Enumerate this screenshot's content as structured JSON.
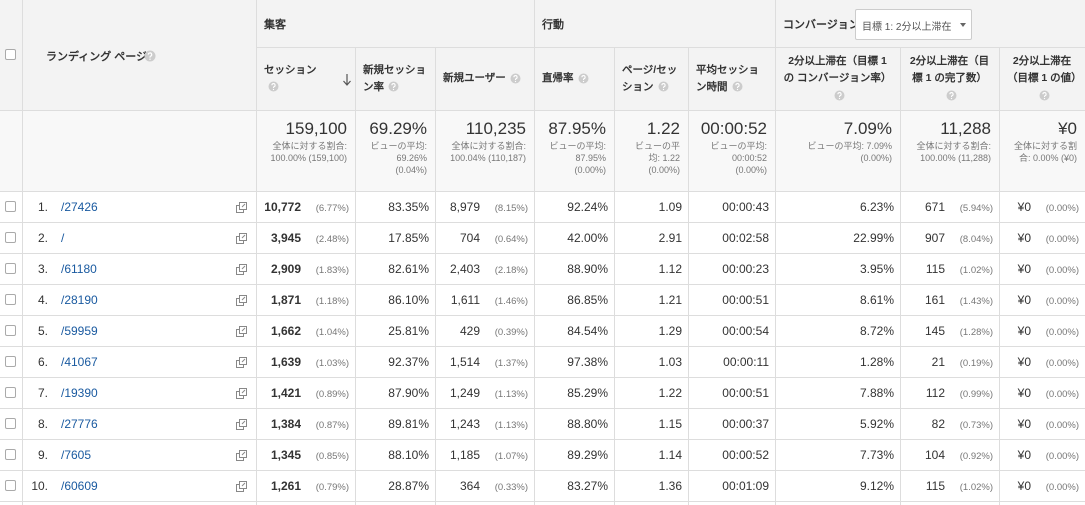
{
  "groups": [
    "集客",
    "行動",
    "コンバージョン"
  ],
  "goal_selector": "目標 1: 2分以上滞在",
  "columns": [
    "ランディング ページ",
    "セッション",
    "新規セッション率",
    "新規ユーザー",
    "直帰率",
    "ページ/セッション",
    "平均セッション時間",
    "2分以上滞在（目標 1 の コンバージョン率）",
    "2分以上滞在（目標 1 の完了数）",
    "2分以上滞在（目標 1 の値）"
  ],
  "totals": [
    {
      "value": "159,100",
      "note": [
        "全体に対する割合:",
        "100.00% (159,100)"
      ]
    },
    {
      "value": "69.29%",
      "note": [
        "ビューの平均:",
        "69.26%",
        "(0.04%)"
      ]
    },
    {
      "value": "110,235",
      "note": [
        "全体に対する割合:",
        "100.04% (110,187)"
      ]
    },
    {
      "value": "87.95%",
      "note": [
        "ビューの平均:",
        "87.95%",
        "(0.00%)"
      ]
    },
    {
      "value": "1.22",
      "note": [
        "ビューの平",
        "均: 1.22",
        "(0.00%)"
      ]
    },
    {
      "value": "00:00:52",
      "note": [
        "ビューの平均:",
        "00:00:52",
        "(0.00%)"
      ]
    },
    {
      "value": "7.09%",
      "note": [
        "ビューの平均: 7.09%",
        "(0.00%)"
      ]
    },
    {
      "value": "11,288",
      "note": [
        "全体に対する割合:",
        "100.00% (11,288)"
      ]
    },
    {
      "value": "¥0",
      "note": [
        "全体に対する割",
        "合: 0.00% (¥0)"
      ]
    }
  ],
  "rows": [
    {
      "rank": "1.",
      "page": "/27426",
      "cells": [
        [
          "10,772",
          "(6.77%)"
        ],
        [
          "83.35%"
        ],
        [
          "8,979",
          "(8.15%)"
        ],
        [
          "92.24%"
        ],
        [
          "1.09"
        ],
        [
          "00:00:43"
        ],
        [
          "6.23%"
        ],
        [
          "671",
          "(5.94%)"
        ],
        [
          "¥0",
          "(0.00%)"
        ]
      ]
    },
    {
      "rank": "2.",
      "page": "/",
      "cells": [
        [
          "3,945",
          "(2.48%)"
        ],
        [
          "17.85%"
        ],
        [
          "704",
          "(0.64%)"
        ],
        [
          "42.00%"
        ],
        [
          "2.91"
        ],
        [
          "00:02:58"
        ],
        [
          "22.99%"
        ],
        [
          "907",
          "(8.04%)"
        ],
        [
          "¥0",
          "(0.00%)"
        ]
      ]
    },
    {
      "rank": "3.",
      "page": "/61180",
      "cells": [
        [
          "2,909",
          "(1.83%)"
        ],
        [
          "82.61%"
        ],
        [
          "2,403",
          "(2.18%)"
        ],
        [
          "88.90%"
        ],
        [
          "1.12"
        ],
        [
          "00:00:23"
        ],
        [
          "3.95%"
        ],
        [
          "115",
          "(1.02%)"
        ],
        [
          "¥0",
          "(0.00%)"
        ]
      ]
    },
    {
      "rank": "4.",
      "page": "/28190",
      "cells": [
        [
          "1,871",
          "(1.18%)"
        ],
        [
          "86.10%"
        ],
        [
          "1,611",
          "(1.46%)"
        ],
        [
          "86.85%"
        ],
        [
          "1.21"
        ],
        [
          "00:00:51"
        ],
        [
          "8.61%"
        ],
        [
          "161",
          "(1.43%)"
        ],
        [
          "¥0",
          "(0.00%)"
        ]
      ]
    },
    {
      "rank": "5.",
      "page": "/59959",
      "cells": [
        [
          "1,662",
          "(1.04%)"
        ],
        [
          "25.81%"
        ],
        [
          "429",
          "(0.39%)"
        ],
        [
          "84.54%"
        ],
        [
          "1.29"
        ],
        [
          "00:00:54"
        ],
        [
          "8.72%"
        ],
        [
          "145",
          "(1.28%)"
        ],
        [
          "¥0",
          "(0.00%)"
        ]
      ]
    },
    {
      "rank": "6.",
      "page": "/41067",
      "cells": [
        [
          "1,639",
          "(1.03%)"
        ],
        [
          "92.37%"
        ],
        [
          "1,514",
          "(1.37%)"
        ],
        [
          "97.38%"
        ],
        [
          "1.03"
        ],
        [
          "00:00:11"
        ],
        [
          "1.28%"
        ],
        [
          "21",
          "(0.19%)"
        ],
        [
          "¥0",
          "(0.00%)"
        ]
      ]
    },
    {
      "rank": "7.",
      "page": "/19390",
      "cells": [
        [
          "1,421",
          "(0.89%)"
        ],
        [
          "87.90%"
        ],
        [
          "1,249",
          "(1.13%)"
        ],
        [
          "85.29%"
        ],
        [
          "1.22"
        ],
        [
          "00:00:51"
        ],
        [
          "7.88%"
        ],
        [
          "112",
          "(0.99%)"
        ],
        [
          "¥0",
          "(0.00%)"
        ]
      ]
    },
    {
      "rank": "8.",
      "page": "/27776",
      "cells": [
        [
          "1,384",
          "(0.87%)"
        ],
        [
          "89.81%"
        ],
        [
          "1,243",
          "(1.13%)"
        ],
        [
          "88.80%"
        ],
        [
          "1.15"
        ],
        [
          "00:00:37"
        ],
        [
          "5.92%"
        ],
        [
          "82",
          "(0.73%)"
        ],
        [
          "¥0",
          "(0.00%)"
        ]
      ]
    },
    {
      "rank": "9.",
      "page": "/7605",
      "cells": [
        [
          "1,345",
          "(0.85%)"
        ],
        [
          "88.10%"
        ],
        [
          "1,185",
          "(1.07%)"
        ],
        [
          "89.29%"
        ],
        [
          "1.14"
        ],
        [
          "00:00:52"
        ],
        [
          "7.73%"
        ],
        [
          "104",
          "(0.92%)"
        ],
        [
          "¥0",
          "(0.00%)"
        ]
      ]
    },
    {
      "rank": "10.",
      "page": "/60609",
      "cells": [
        [
          "1,261",
          "(0.79%)"
        ],
        [
          "28.87%"
        ],
        [
          "364",
          "(0.33%)"
        ],
        [
          "83.27%"
        ],
        [
          "1.36"
        ],
        [
          "00:01:09"
        ],
        [
          "9.12%"
        ],
        [
          "115",
          "(1.02%)"
        ],
        [
          "¥0",
          "(0.00%)"
        ]
      ]
    }
  ]
}
